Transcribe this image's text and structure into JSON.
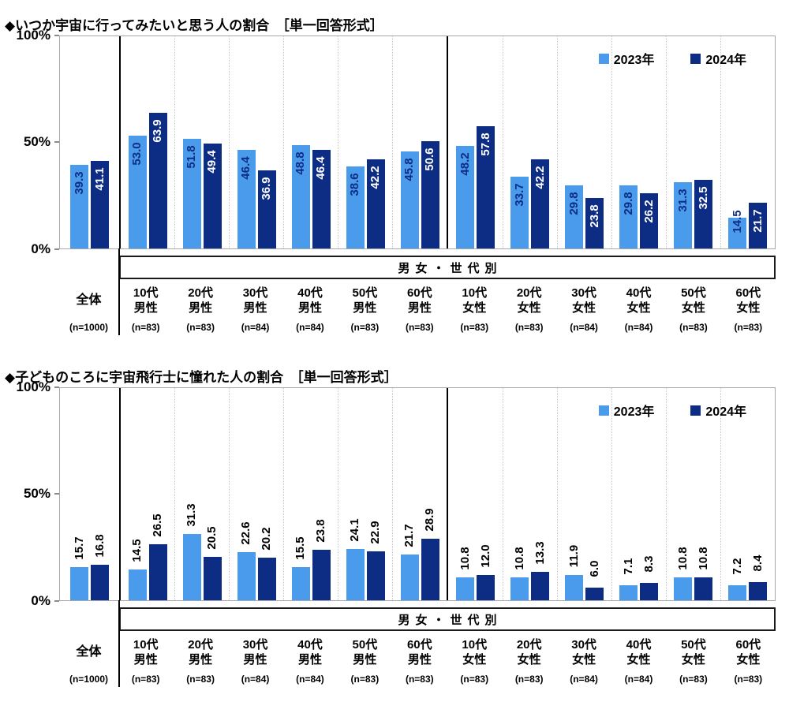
{
  "colors": {
    "series_2023": "#4A9BEC",
    "series_2024": "#0D2D85",
    "label_on_light_bar": "#0D2D85",
    "label_on_dark_bar": "#ffffff",
    "label_above_bar": "#000000"
  },
  "chart_data": [
    {
      "type": "bar",
      "title": "◆いつか宇宙に行ってみたいと思う人の割合　［単一回答形式］",
      "label_position": "inside",
      "ylim": [
        0,
        100
      ],
      "yticks": [
        "100%",
        "50%",
        "0%"
      ],
      "group_band_label": "男女・世代別",
      "legend_position": "top-right",
      "categories": [
        {
          "line1": "全体",
          "line2": "",
          "n": "(n=1000)"
        },
        {
          "line1": "10代",
          "line2": "男性",
          "n": "(n=83)"
        },
        {
          "line1": "20代",
          "line2": "男性",
          "n": "(n=83)"
        },
        {
          "line1": "30代",
          "line2": "男性",
          "n": "(n=84)"
        },
        {
          "line1": "40代",
          "line2": "男性",
          "n": "(n=84)"
        },
        {
          "line1": "50代",
          "line2": "男性",
          "n": "(n=83)"
        },
        {
          "line1": "60代",
          "line2": "男性",
          "n": "(n=83)"
        },
        {
          "line1": "10代",
          "line2": "女性",
          "n": "(n=83)"
        },
        {
          "line1": "20代",
          "line2": "女性",
          "n": "(n=83)"
        },
        {
          "line1": "30代",
          "line2": "女性",
          "n": "(n=84)"
        },
        {
          "line1": "40代",
          "line2": "女性",
          "n": "(n=84)"
        },
        {
          "line1": "50代",
          "line2": "女性",
          "n": "(n=83)"
        },
        {
          "line1": "60代",
          "line2": "女性",
          "n": "(n=83)"
        }
      ],
      "series": [
        {
          "name": "2023年",
          "color": "#4A9BEC",
          "values": [
            39.3,
            53.0,
            51.8,
            46.4,
            48.8,
            38.6,
            45.8,
            48.2,
            33.7,
            29.8,
            29.8,
            31.3,
            14.5
          ]
        },
        {
          "name": "2024年",
          "color": "#0D2D85",
          "values": [
            41.1,
            63.9,
            49.4,
            36.9,
            46.4,
            42.2,
            50.6,
            57.8,
            42.2,
            23.8,
            26.2,
            32.5,
            21.7
          ]
        }
      ]
    },
    {
      "type": "bar",
      "title": "◆子どものころに宇宙飛行士に憧れた人の割合　［単一回答形式］",
      "label_position": "above",
      "ylim": [
        0,
        100
      ],
      "yticks": [
        "100%",
        "50%",
        "0%"
      ],
      "group_band_label": "男女・世代別",
      "legend_position": "top-right",
      "categories": [
        {
          "line1": "全体",
          "line2": "",
          "n": "(n=1000)"
        },
        {
          "line1": "10代",
          "line2": "男性",
          "n": "(n=83)"
        },
        {
          "line1": "20代",
          "line2": "男性",
          "n": "(n=83)"
        },
        {
          "line1": "30代",
          "line2": "男性",
          "n": "(n=84)"
        },
        {
          "line1": "40代",
          "line2": "男性",
          "n": "(n=84)"
        },
        {
          "line1": "50代",
          "line2": "男性",
          "n": "(n=83)"
        },
        {
          "line1": "60代",
          "line2": "男性",
          "n": "(n=83)"
        },
        {
          "line1": "10代",
          "line2": "女性",
          "n": "(n=83)"
        },
        {
          "line1": "20代",
          "line2": "女性",
          "n": "(n=83)"
        },
        {
          "line1": "30代",
          "line2": "女性",
          "n": "(n=84)"
        },
        {
          "line1": "40代",
          "line2": "女性",
          "n": "(n=84)"
        },
        {
          "line1": "50代",
          "line2": "女性",
          "n": "(n=83)"
        },
        {
          "line1": "60代",
          "line2": "女性",
          "n": "(n=83)"
        }
      ],
      "series": [
        {
          "name": "2023年",
          "color": "#4A9BEC",
          "values": [
            15.7,
            14.5,
            31.3,
            22.6,
            15.5,
            24.1,
            21.7,
            10.8,
            10.8,
            11.9,
            7.1,
            10.8,
            7.2
          ]
        },
        {
          "name": "2024年",
          "color": "#0D2D85",
          "values": [
            16.8,
            26.5,
            20.5,
            20.2,
            23.8,
            22.9,
            28.9,
            12.0,
            13.3,
            6.0,
            8.3,
            10.8,
            8.4
          ]
        }
      ]
    }
  ]
}
